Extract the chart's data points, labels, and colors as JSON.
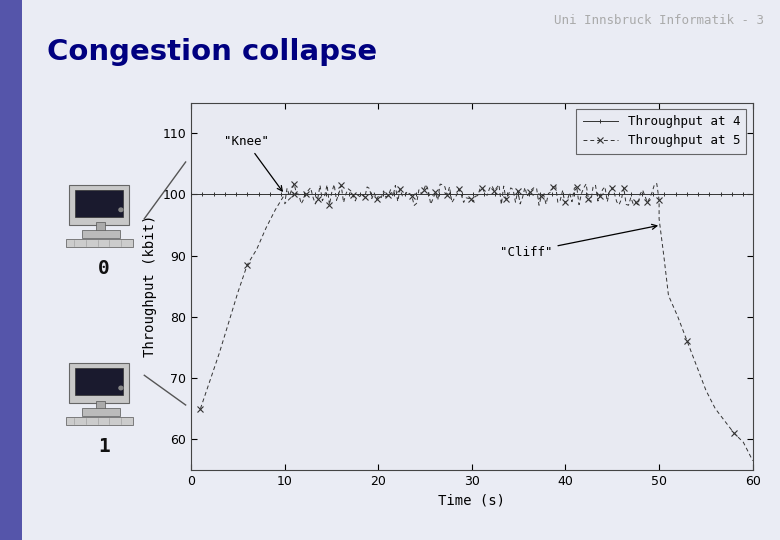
{
  "title": "Congestion collapse",
  "watermark": "Uni Innsbruck Informatik - 3",
  "xlabel": "Time (s)",
  "ylabel": "Throughput (kbit)",
  "xlim": [
    0,
    60
  ],
  "ylim": [
    55,
    115
  ],
  "yticks": [
    60,
    70,
    80,
    90,
    100,
    110
  ],
  "xticks": [
    0,
    10,
    20,
    30,
    40,
    50,
    60
  ],
  "bg_color": "#eaecf4",
  "plot_bg_color": "#e8eaf2",
  "title_color": "#000080",
  "watermark_color": "#aaaaaa",
  "line1_color": "#333333",
  "line2_color": "#333333",
  "knee_annotation": "\"Knee\"",
  "cliff_annotation": "\"Cliff\"",
  "legend_labels": [
    "Throughput at 4",
    "Throughput at 5"
  ],
  "left_bar_color": "#5555aa",
  "label0": "0",
  "label1": "1"
}
